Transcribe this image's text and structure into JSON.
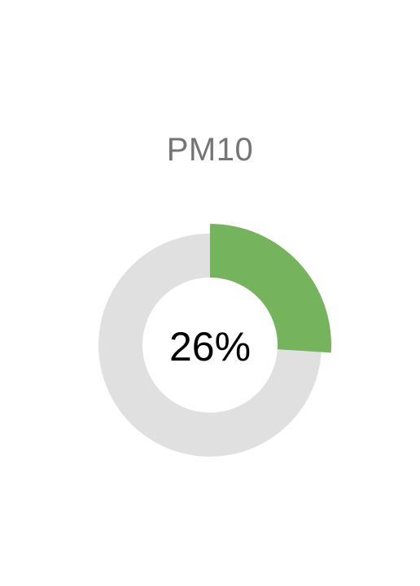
{
  "chart_data": {
    "type": "pie",
    "title": "PM10",
    "value_percent": 26,
    "value_label": "26%",
    "categories": [
      "PM10",
      "remaining"
    ],
    "values": [
      26,
      74
    ],
    "colors": {
      "value": "#75b45d",
      "track": "#e0e0e0",
      "title": "#757575",
      "label": "#000000"
    }
  }
}
